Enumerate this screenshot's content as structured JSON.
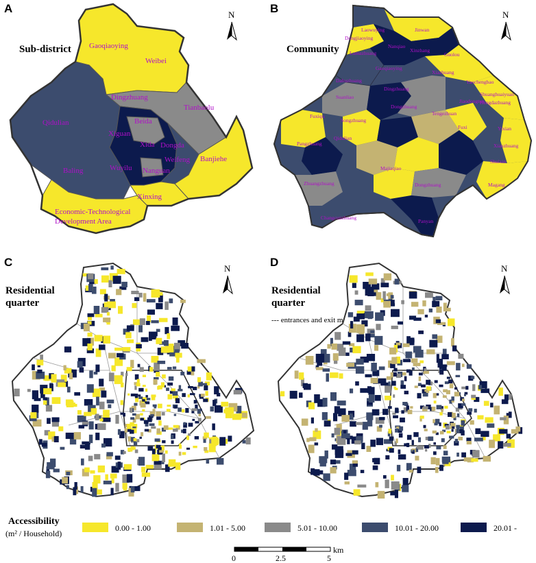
{
  "colors": {
    "c0": "#f6e72b",
    "c1": "#c4b372",
    "c2": "#8a8a8a",
    "c3": "#3c4c6e",
    "c4": "#0c1a4d",
    "label": "#b00fc8"
  },
  "panels": {
    "a": {
      "letter": "A",
      "title": "Sub-district"
    },
    "b": {
      "letter": "B",
      "title": "Community"
    },
    "c": {
      "letter": "C",
      "title_line1": "Residential",
      "title_line2": "quarter"
    },
    "d": {
      "letter": "D",
      "title_line1": "Residential",
      "title_line2": "quarter",
      "subtitle": "--- entrances and exit mode"
    }
  },
  "north_label": "N",
  "subdistrict_labels": [
    "Gaoqiaoying",
    "Weibei",
    "Dingzhuang",
    "Tianbaolu",
    "Qidulian",
    "Xiguan",
    "Beida",
    "Xida",
    "Dongda",
    "Nanguan",
    "Wuyilu",
    "Weifeng",
    "Banjiehe",
    "Baling",
    "Xinxing",
    "Economic-Technological",
    "Development Area"
  ],
  "community_labels": [
    "Laowuying",
    "Dongjiaoying",
    "Jinwan",
    "Nanqiao",
    "Xinzhang",
    "Guolou",
    "Lumazhuang",
    "Gaoqiaoying",
    "Dahuzhuang",
    "Xiazhuang",
    "Yaochengbao",
    "Dingzhuang",
    "Shuanghuaiyuan",
    "Jiaodongtun",
    "Hengdazhuang",
    "Suanliao",
    "Dongzhuang",
    "Fuxiqu",
    "Tengezhuan",
    "Songzhuang",
    "Fuxi",
    "Pangzhuang",
    "Qidulian",
    "Yixian",
    "Changcunzhuang",
    "Xianzhuang",
    "Zhuangzhuang",
    "Majiaqiao",
    "Dongzhuang",
    "Shuixin",
    "Magang",
    "Panyan"
  ],
  "legend": {
    "title": "Accessibility",
    "unit": "(m² / Household)",
    "items": [
      "0.00 - 1.00",
      "1.01 - 5.00",
      "5.01 - 10.00",
      "10.01 - 20.00",
      "20.01 -"
    ]
  },
  "scale_bar": {
    "ticks": [
      "0",
      "2.5",
      "5"
    ],
    "unit": "km"
  }
}
